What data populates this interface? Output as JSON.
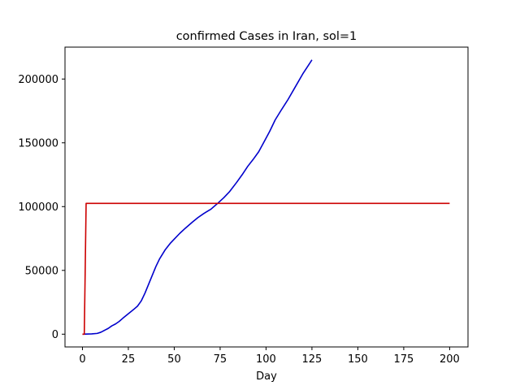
{
  "chart_data": {
    "type": "line",
    "title": "confirmed Cases in Iran, sol=1",
    "xlabel": "Day",
    "ylabel": "",
    "xlim": [
      -9.5,
      210
    ],
    "ylim": [
      -10000,
      225000
    ],
    "xticks": [
      0,
      25,
      50,
      75,
      100,
      125,
      150,
      175,
      200
    ],
    "xtick_labels": [
      "0",
      "25",
      "50",
      "75",
      "100",
      "125",
      "150",
      "175",
      "200"
    ],
    "yticks": [
      0,
      50000,
      100000,
      150000,
      200000
    ],
    "ytick_labels": [
      "0",
      "50000",
      "100000",
      "150000",
      "200000"
    ],
    "grid": false,
    "series": [
      {
        "color": "#0000cc",
        "x": [
          0,
          5,
          8,
          10,
          12,
          14,
          16,
          18,
          20,
          22,
          25,
          28,
          30,
          32,
          34,
          36,
          38,
          40,
          42,
          45,
          48,
          50,
          53,
          56,
          60,
          63,
          66,
          70,
          74,
          77,
          80,
          84,
          87,
          90,
          93,
          96,
          99,
          102,
          105,
          108,
          112,
          116,
          120,
          125
        ],
        "y": [
          0,
          200,
          600,
          1500,
          3000,
          4500,
          6500,
          8000,
          10000,
          12500,
          16000,
          19500,
          22000,
          26000,
          32000,
          39000,
          46000,
          53000,
          59000,
          66000,
          71500,
          74500,
          79000,
          83000,
          88000,
          91500,
          94500,
          98000,
          103000,
          107000,
          111500,
          119000,
          125000,
          131500,
          137000,
          143000,
          151000,
          159000,
          168000,
          175000,
          184000,
          194000,
          204000,
          215000
        ]
      },
      {
        "color": "#cc0000",
        "x": [
          0,
          1,
          1.5,
          2,
          25,
          50,
          75,
          100,
          125,
          150,
          175,
          200
        ],
        "y": [
          0,
          0,
          50000,
          102500,
          102500,
          102500,
          102500,
          102500,
          102500,
          102500,
          102500,
          102500
        ]
      }
    ]
  }
}
